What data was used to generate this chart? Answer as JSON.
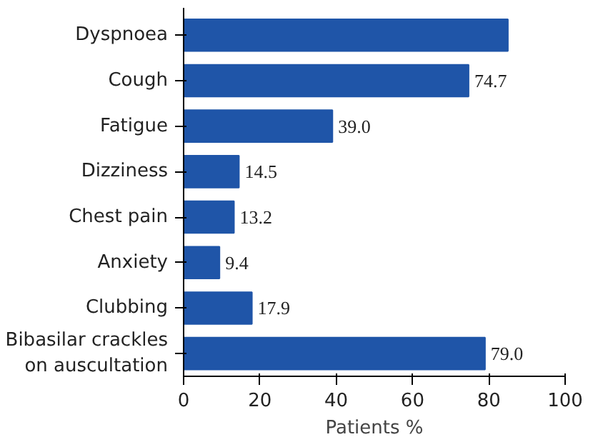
{
  "chart_data": {
    "type": "bar",
    "orientation": "horizontal",
    "xlabel": "Patients %",
    "categories": [
      "Dyspnoea",
      "Cough",
      "Fatigue",
      "Dizziness",
      "Chest pain",
      "Anxiety",
      "Clubbing",
      "Bibasilar crackles\non auscultation"
    ],
    "values": [
      85,
      74.7,
      39.0,
      14.5,
      13.2,
      9.4,
      17.9,
      79.0
    ],
    "value_labels": [
      null,
      "74.7",
      "39.0",
      "14.5",
      "13.2",
      "9.4",
      "17.9",
      "79.0"
    ],
    "color": "#1f55a8",
    "xlim": [
      0,
      100
    ],
    "xticks": [
      0,
      20,
      40,
      60,
      80,
      100
    ],
    "grid": false
  }
}
